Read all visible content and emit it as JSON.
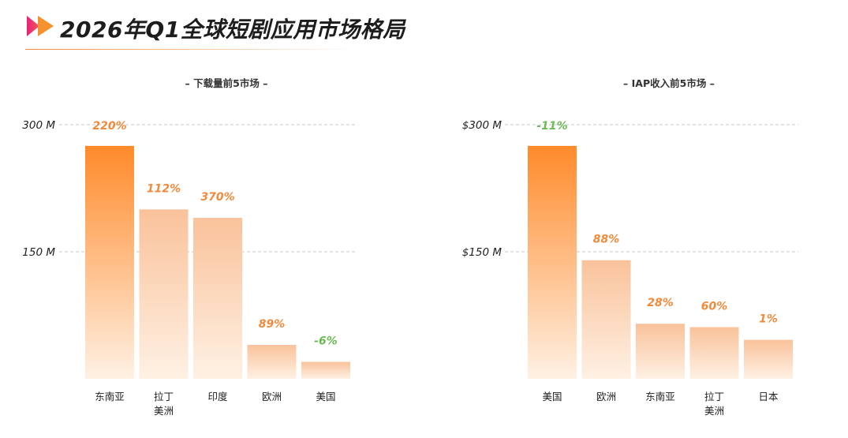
{
  "page": {
    "title": "2026年Q1全球短剧应用市场格局"
  },
  "colors": {
    "accent": "#f08a3c",
    "positive": "#f08a3c",
    "negative": "#6cba55",
    "bar_top": "#ff8a2a",
    "bar_bottom": "#fff1e4",
    "bar_light_top": "#f9c29a",
    "grid": "#c8c8c8"
  },
  "chart_data": [
    {
      "type": "bar",
      "title": "– 下载量前5市场 –",
      "categories": [
        "东南亚",
        "拉丁\n美洲",
        "印度",
        "欧洲",
        "美国"
      ],
      "values": [
        275,
        200,
        190,
        40,
        20
      ],
      "data_labels": [
        "220%",
        "112%",
        "370%",
        "89%",
        "-6%"
      ],
      "label_signs": [
        "positive",
        "positive",
        "positive",
        "positive",
        "negative"
      ],
      "yticks": [
        150,
        300
      ],
      "ytick_labels": [
        "150 M",
        "300 M"
      ],
      "ylim": [
        0,
        300
      ],
      "grid": true,
      "highlight_index": 0
    },
    {
      "type": "bar",
      "title": "– IAP收入前5市场 –",
      "categories": [
        "美国",
        "欧洲",
        "东南亚",
        "拉丁\n美洲",
        "日本"
      ],
      "values": [
        275,
        140,
        65,
        61,
        46
      ],
      "data_labels": [
        "-11%",
        "88%",
        "28%",
        "60%",
        "1%"
      ],
      "label_signs": [
        "negative",
        "positive",
        "positive",
        "positive",
        "positive"
      ],
      "yticks": [
        150,
        300
      ],
      "ytick_labels": [
        "$150 M",
        "$300 M"
      ],
      "ylim": [
        0,
        300
      ],
      "grid": true,
      "highlight_index": 0
    }
  ]
}
